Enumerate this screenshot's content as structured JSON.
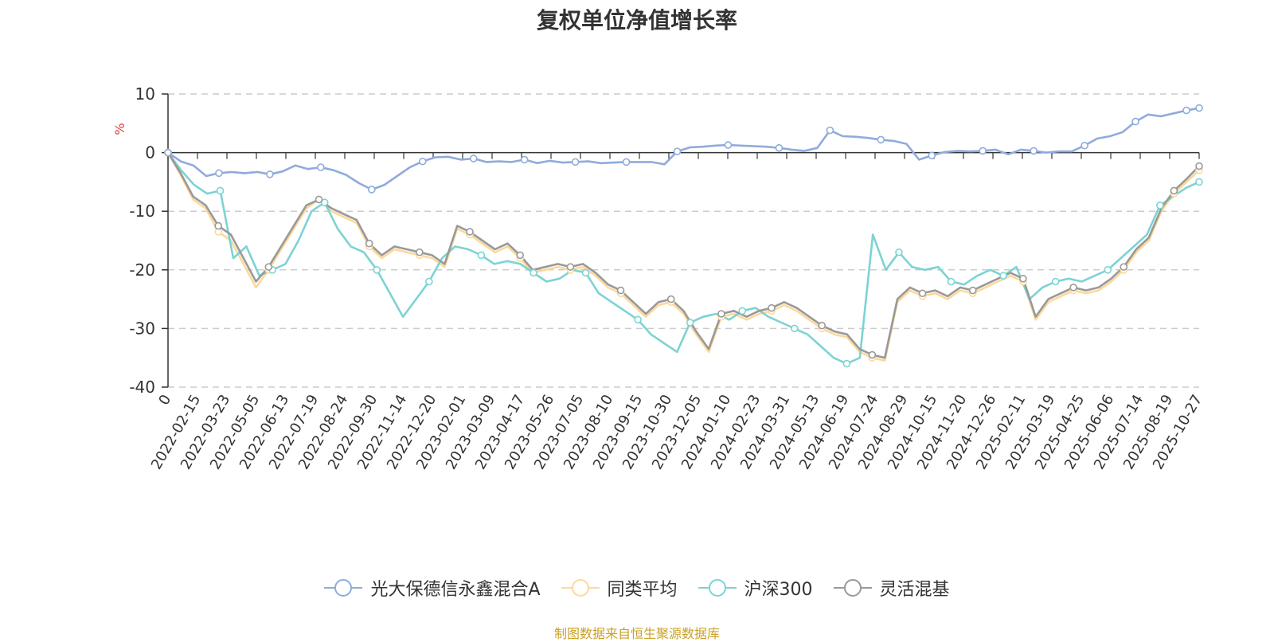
{
  "chart_data": {
    "type": "line",
    "title": "复权单位净值增长率",
    "ylabel": "%",
    "ylim": [
      -40,
      10
    ],
    "yticks": [
      "10",
      "0",
      "-10",
      "-20",
      "-30",
      "-40"
    ],
    "xticks": [
      "0",
      "2022-02-15",
      "2022-03-23",
      "2022-05-05",
      "2022-06-13",
      "2022-07-19",
      "2022-08-24",
      "2022-09-30",
      "2022-11-14",
      "2022-12-20",
      "2023-02-01",
      "2023-03-09",
      "2023-04-17",
      "2023-05-26",
      "2023-07-05",
      "2023-08-10",
      "2023-09-15",
      "2023-10-30",
      "2023-12-05",
      "2024-01-10",
      "2024-02-23",
      "2024-03-31",
      "2024-05-13",
      "2024-06-19",
      "2024-07-24",
      "2024-08-29",
      "2024-10-15",
      "2024-11-20",
      "2024-12-26",
      "2025-02-11",
      "2025-03-19",
      "2025-04-25",
      "2025-06-06",
      "2025-07-14",
      "2025-08-19",
      "2025-10-27"
    ],
    "grid": "horizontal-dashed",
    "legend_position": "bottom",
    "source_note": "制图数据来自恒生聚源数据库",
    "colors": {
      "fund": "#8fabdc",
      "peer_avg": "#fcd99b",
      "hs300": "#7dd3d3",
      "flexible": "#999999",
      "source": "#c9a227",
      "ylabel": "#e83a3a"
    },
    "series": [
      {
        "name": "光大保德信永鑫混合A",
        "color": "#8fabdc",
        "values": [
          0,
          -1.5,
          -2.2,
          -4,
          -3.5,
          -3.3,
          -3.5,
          -3.3,
          -3.7,
          -3.2,
          -2.2,
          -2.8,
          -2.5,
          -3,
          -3.8,
          -5.2,
          -6.3,
          -5.5,
          -4,
          -2.5,
          -1.5,
          -0.8,
          -0.7,
          -1.2,
          -1,
          -1.6,
          -1.5,
          -1.6,
          -1.2,
          -1.8,
          -1.4,
          -1.7,
          -1.6,
          -1.5,
          -1.8,
          -1.7,
          -1.6,
          -1.6,
          -1.6,
          -2,
          0.2,
          0.9,
          1,
          1.2,
          1.3,
          1.2,
          1.1,
          1,
          0.8,
          0.5,
          0.3,
          0.8,
          3.8,
          2.8,
          2.7,
          2.5,
          2.2,
          2,
          1.5,
          -1.2,
          -0.5,
          0.1,
          0.3,
          0.2,
          0.3,
          0.5,
          -0.3,
          0.5,
          0.3,
          0,
          0.2,
          0.2,
          1.2,
          2.4,
          2.8,
          3.5,
          5.3,
          6.5,
          6.2,
          6.7,
          7.2,
          7.6
        ]
      },
      {
        "name": "同类平均",
        "color": "#fcd99b",
        "values": [
          0,
          -3.8,
          -8,
          -9.5,
          -13.5,
          -15,
          -19,
          -23,
          -20,
          -16.5,
          -13,
          -9.5,
          -8,
          -10,
          -11,
          -12,
          -16,
          -18,
          -16.5,
          -17,
          -17.5,
          -18,
          -19.5,
          -13,
          -14,
          -15.5,
          -17,
          -16,
          -18,
          -20.5,
          -20,
          -19.5,
          -20,
          -19.5,
          -21,
          -23,
          -24,
          -26,
          -28,
          -26,
          -25.5,
          -27.5,
          -31,
          -34,
          -28,
          -27.5,
          -28.5,
          -27.5,
          -27,
          -26,
          -27,
          -28.5,
          -30,
          -31,
          -31.5,
          -34,
          -35,
          -35.5,
          -25.5,
          -23.5,
          -24.5,
          -24,
          -25,
          -23.5,
          -24,
          -23,
          -22,
          -21,
          -22,
          -28.5,
          -25.5,
          -24.5,
          -23.5,
          -24,
          -23.5,
          -22,
          -20,
          -17,
          -15,
          -10,
          -7,
          -5,
          -3
        ]
      },
      {
        "name": "沪深300",
        "color": "#7dd3d3",
        "values": [
          0,
          -3,
          -5.5,
          -7,
          -6.5,
          -18,
          -16,
          -21,
          -20,
          -19,
          -15,
          -10,
          -8.5,
          -13,
          -16,
          -17,
          -20,
          -24,
          -28,
          -25,
          -22,
          -18,
          -16,
          -16.5,
          -17.5,
          -19,
          -18.5,
          -19,
          -20.5,
          -22,
          -21.5,
          -20,
          -20.5,
          -24,
          -25.5,
          -27,
          -28.5,
          -31,
          -32.5,
          -34,
          -29,
          -28,
          -27.5,
          -28.5,
          -27,
          -26.5,
          -28,
          -29,
          -30,
          -31,
          -33,
          -35,
          -36,
          -35,
          -14,
          -20,
          -17,
          -19.5,
          -20,
          -19.5,
          -22,
          -22.5,
          -21,
          -20,
          -21,
          -19.5,
          -25,
          -23,
          -22,
          -21.5,
          -22,
          -21,
          -20,
          -18,
          -16,
          -14,
          -9,
          -7.5,
          -6,
          -5
        ]
      },
      {
        "name": "灵活混基",
        "color": "#999999",
        "values": [
          0,
          -3.5,
          -7.5,
          -9,
          -12.5,
          -14,
          -18,
          -22,
          -19.5,
          -16,
          -12.5,
          -9,
          -8,
          -9.5,
          -10.5,
          -11.5,
          -15.5,
          -17.5,
          -16,
          -16.5,
          -17,
          -17.5,
          -19,
          -12.5,
          -13.5,
          -15,
          -16.5,
          -15.5,
          -17.5,
          -20,
          -19.5,
          -19,
          -19.5,
          -19,
          -20.5,
          -22.5,
          -23.5,
          -25.5,
          -27.5,
          -25.5,
          -25,
          -27,
          -30.5,
          -33.5,
          -27.5,
          -27,
          -28,
          -27,
          -26.5,
          -25.5,
          -26.5,
          -28,
          -29.5,
          -30.5,
          -31,
          -33.5,
          -34.5,
          -35,
          -25,
          -23,
          -24,
          -23.5,
          -24.5,
          -23,
          -23.5,
          -22.5,
          -21.5,
          -20.5,
          -21.5,
          -28,
          -25,
          -24,
          -23,
          -23.5,
          -23,
          -21.5,
          -19.5,
          -16.5,
          -14.5,
          -9.5,
          -6.5,
          -4.5,
          -2.3
        ]
      }
    ]
  }
}
